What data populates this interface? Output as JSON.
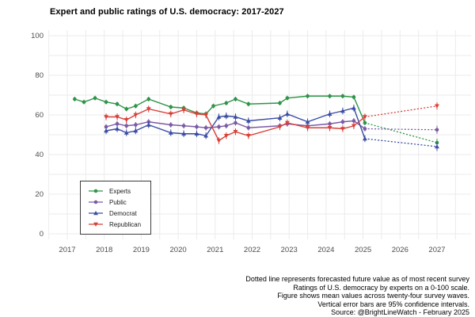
{
  "title": "Expert and public ratings of U.S. democracy: 2017-2027",
  "footnotes": [
    "Dotted line represents forecasted future value as of most recent survey",
    "Ratings of U.S. democracy by experts on a 0-100 scale.",
    "Figure shows mean values across twenty-four survey waves.",
    "Vertical error bars are 95% confidence intervals.",
    "Source: @BrightLineWatch - February 2025"
  ],
  "chart_data": {
    "type": "line",
    "title": "Expert and public ratings of U.S. democracy: 2017-2027",
    "xlabel": "",
    "ylabel": "",
    "x_ticks": [
      2017,
      2018,
      2019,
      2020,
      2021,
      2022,
      2023,
      2024,
      2025,
      2026,
      2027
    ],
    "y_ticks": [
      0,
      20,
      40,
      60,
      80,
      100
    ],
    "xlim": [
      2016.5,
      2027.9
    ],
    "ylim": [
      0,
      100
    ],
    "grid": true,
    "x_minor_grid_interval": 0.5,
    "y_minor_grid_interval": 10,
    "legend_position": "inside-bottom-left",
    "tick_color": "#4d4d4d",
    "grid_color": "#ebebeb",
    "series": [
      {
        "name": "Experts",
        "color": "#2e9448",
        "marker": "circle",
        "error": 1.2,
        "x": [
          2017.2,
          2017.45,
          2017.75,
          2018.05,
          2018.35,
          2018.6,
          2018.85,
          2019.2,
          2019.8,
          2020.15,
          2020.5,
          2020.75,
          2020.95,
          2021.3,
          2021.55,
          2021.9,
          2022.75,
          2022.95,
          2023.5,
          2024.1,
          2024.45,
          2024.75,
          2025.05
        ],
        "y": [
          68,
          66.5,
          68.5,
          66.5,
          65.5,
          63,
          64.5,
          68,
          64,
          63.5,
          61,
          60.5,
          64.5,
          66,
          68,
          65.5,
          66,
          68.5,
          69.5,
          69.5,
          69.5,
          69,
          56
        ],
        "forecast_x": [
          2025.05,
          2027
        ],
        "forecast_y": [
          56,
          46
        ],
        "forecast_error": 2
      },
      {
        "name": "Public",
        "color": "#7b5aa6",
        "marker": "circle",
        "error": 1.4,
        "x": [
          2018.05,
          2018.35,
          2018.6,
          2018.85,
          2019.2,
          2019.8,
          2020.15,
          2020.5,
          2020.75,
          2021.1,
          2021.3,
          2021.55,
          2021.9,
          2022.75,
          2022.95,
          2023.5,
          2024.1,
          2024.45,
          2024.75,
          2025.05
        ],
        "y": [
          54,
          55.5,
          54.5,
          55,
          56.5,
          55,
          54.5,
          54,
          53.5,
          54,
          54.5,
          56,
          53.5,
          54.5,
          55.5,
          54.5,
          55.5,
          56.5,
          57,
          53
        ],
        "forecast_x": [
          2025.05,
          2027
        ],
        "forecast_y": [
          53,
          52.5
        ],
        "forecast_error": 2
      },
      {
        "name": "Democrat",
        "color": "#3a4ca5",
        "marker": "triangle-up",
        "error": 1.7,
        "x": [
          2018.05,
          2018.35,
          2018.6,
          2018.85,
          2019.2,
          2019.8,
          2020.15,
          2020.5,
          2020.75,
          2021.1,
          2021.3,
          2021.55,
          2021.9,
          2022.75,
          2022.95,
          2023.5,
          2024.1,
          2024.45,
          2024.75,
          2025.05
        ],
        "y": [
          52,
          53,
          51,
          52,
          55,
          51,
          50.5,
          50.5,
          49.5,
          59,
          59.5,
          59,
          57,
          58.5,
          60.5,
          56.5,
          60.5,
          62,
          63.5,
          48
        ],
        "forecast_x": [
          2025.05,
          2027
        ],
        "forecast_y": [
          48,
          44
        ],
        "forecast_error": 2.2
      },
      {
        "name": "Republican",
        "color": "#d8403a",
        "marker": "triangle-down",
        "error": 1.7,
        "x": [
          2018.05,
          2018.35,
          2018.6,
          2018.85,
          2019.2,
          2019.8,
          2020.15,
          2020.5,
          2020.75,
          2021.1,
          2021.3,
          2021.55,
          2021.9,
          2022.75,
          2022.95,
          2023.5,
          2024.1,
          2024.45,
          2024.75,
          2025.05
        ],
        "y": [
          59,
          59,
          57.5,
          60,
          63,
          60.5,
          62.5,
          60.5,
          60,
          47,
          49.5,
          51.5,
          49.5,
          54,
          56,
          53.5,
          53.5,
          53,
          54.5,
          59
        ],
        "forecast_x": [
          2025.05,
          2027
        ],
        "forecast_y": [
          59,
          64.5
        ],
        "forecast_error": 1.8
      }
    ]
  }
}
